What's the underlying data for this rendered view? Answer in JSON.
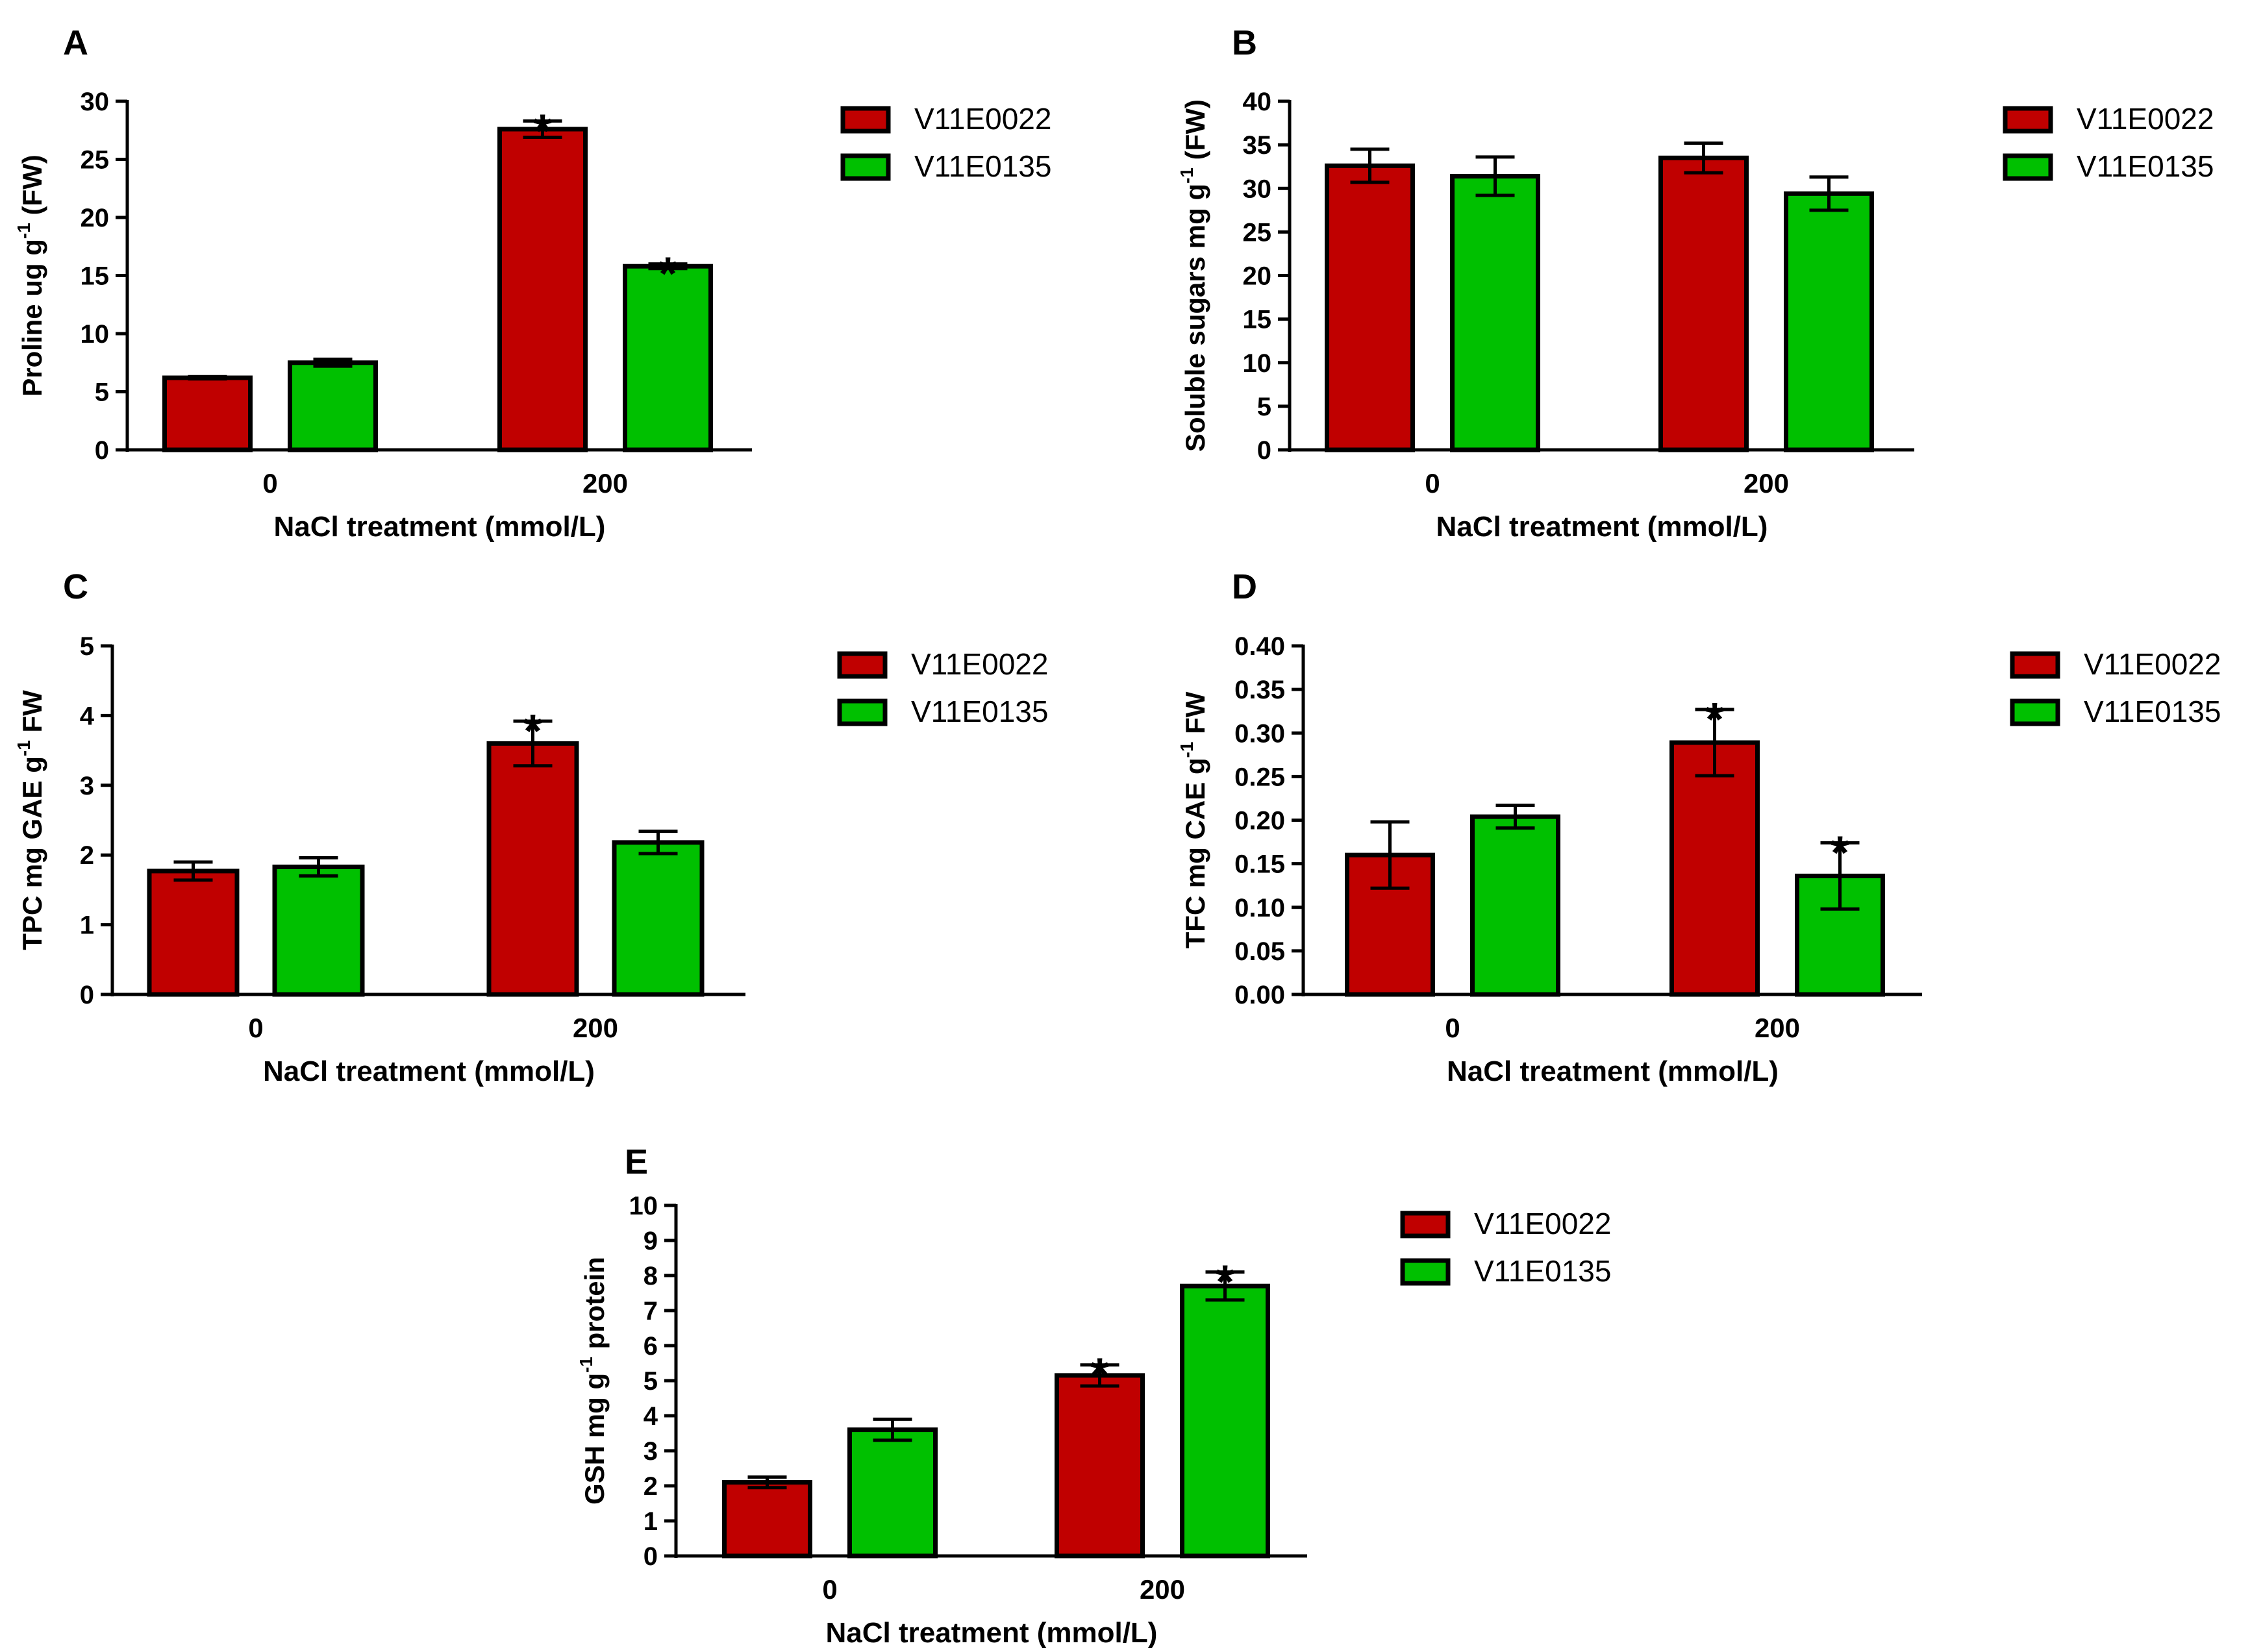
{
  "chart_data": [
    {
      "panel": "A",
      "type": "bar",
      "categories": [
        "0",
        "200"
      ],
      "xlabel": "NaCl treatment (mmol/L)",
      "ylabel": {
        "pre": "Proline ug g",
        "sup": "-1",
        "post": " (FW)"
      },
      "ylim": [
        0,
        30
      ],
      "yticks": [
        "0",
        "5",
        "10",
        "15",
        "20",
        "25",
        "30"
      ],
      "series": [
        {
          "name": "V11E0022",
          "color": "#C00000",
          "values": [
            6.2,
            27.6
          ],
          "errors": [
            0.1,
            0.7
          ],
          "significant": [
            false,
            true
          ]
        },
        {
          "name": "V11E0135",
          "color": "#00C000",
          "values": [
            7.5,
            15.8
          ],
          "errors": [
            0.3,
            0.2
          ],
          "significant": [
            false,
            true
          ]
        }
      ],
      "significance_mark": "*",
      "legend_position": "top-right"
    },
    {
      "panel": "B",
      "type": "bar",
      "categories": [
        "0",
        "200"
      ],
      "xlabel": "NaCl treatment (mmol/L)",
      "ylabel": {
        "pre": "Soluble sugars mg g",
        "sup": "-1",
        "post": " (FW)"
      },
      "ylim": [
        0,
        40
      ],
      "yticks": [
        "0",
        "5",
        "10",
        "15",
        "20",
        "25",
        "30",
        "35",
        "40"
      ],
      "series": [
        {
          "name": "V11E0022",
          "color": "#C00000",
          "values": [
            32.6,
            33.5
          ],
          "errors": [
            1.9,
            1.7
          ],
          "significant": [
            false,
            false
          ]
        },
        {
          "name": "V11E0135",
          "color": "#00C000",
          "values": [
            31.4,
            29.4
          ],
          "errors": [
            2.2,
            1.9
          ],
          "significant": [
            false,
            false
          ]
        }
      ],
      "significance_mark": "*",
      "legend_position": "top-right"
    },
    {
      "panel": "C",
      "type": "bar",
      "categories": [
        "0",
        "200"
      ],
      "xlabel": "NaCl treatment (mmol/L)",
      "ylabel": {
        "pre": "TPC mg GAE g",
        "sup": "-1",
        "post": " FW"
      },
      "ylim": [
        0,
        5
      ],
      "yticks": [
        "0",
        "1",
        "2",
        "3",
        "4",
        "5"
      ],
      "series": [
        {
          "name": "V11E0022",
          "color": "#C00000",
          "values": [
            1.77,
            3.6
          ],
          "errors": [
            0.13,
            0.32
          ],
          "significant": [
            false,
            true
          ]
        },
        {
          "name": "V11E0135",
          "color": "#00C000",
          "values": [
            1.83,
            2.18
          ],
          "errors": [
            0.13,
            0.16
          ],
          "significant": [
            false,
            false
          ]
        }
      ],
      "significance_mark": "*",
      "legend_position": "top-right"
    },
    {
      "panel": "D",
      "type": "bar",
      "categories": [
        "0",
        "200"
      ],
      "xlabel": "NaCl treatment (mmol/L)",
      "ylabel": {
        "pre": "TFC mg CAE g",
        "sup": "-1",
        "post": " FW"
      },
      "ylim": [
        0,
        0.4
      ],
      "yticks": [
        "0.00",
        "0.05",
        "0.10",
        "0.15",
        "0.20",
        "0.25",
        "0.30",
        "0.35",
        "0.40"
      ],
      "series": [
        {
          "name": "V11E0022",
          "color": "#C00000",
          "values": [
            0.16,
            0.289
          ],
          "errors": [
            0.038,
            0.038
          ],
          "significant": [
            false,
            true
          ]
        },
        {
          "name": "V11E0135",
          "color": "#00C000",
          "values": [
            0.204,
            0.136
          ],
          "errors": [
            0.013,
            0.038
          ],
          "significant": [
            false,
            true
          ]
        }
      ],
      "significance_mark": "*",
      "legend_position": "top-right"
    },
    {
      "panel": "E",
      "type": "bar",
      "categories": [
        "0",
        "200"
      ],
      "xlabel": "NaCl treatment (mmol/L)",
      "ylabel": {
        "pre": "GSH mg g",
        "sup": "-1",
        "post": " protein"
      },
      "ylim": [
        0,
        10
      ],
      "yticks": [
        "0",
        "1",
        "2",
        "3",
        "4",
        "5",
        "6",
        "7",
        "8",
        "9",
        "10"
      ],
      "series": [
        {
          "name": "V11E0022",
          "color": "#C00000",
          "values": [
            2.1,
            5.15
          ],
          "errors": [
            0.15,
            0.3
          ],
          "significant": [
            false,
            true
          ]
        },
        {
          "name": "V11E0135",
          "color": "#00C000",
          "values": [
            3.6,
            7.7
          ],
          "errors": [
            0.3,
            0.4
          ],
          "significant": [
            false,
            true
          ]
        }
      ],
      "significance_mark": "*",
      "legend_position": "top-right"
    }
  ]
}
